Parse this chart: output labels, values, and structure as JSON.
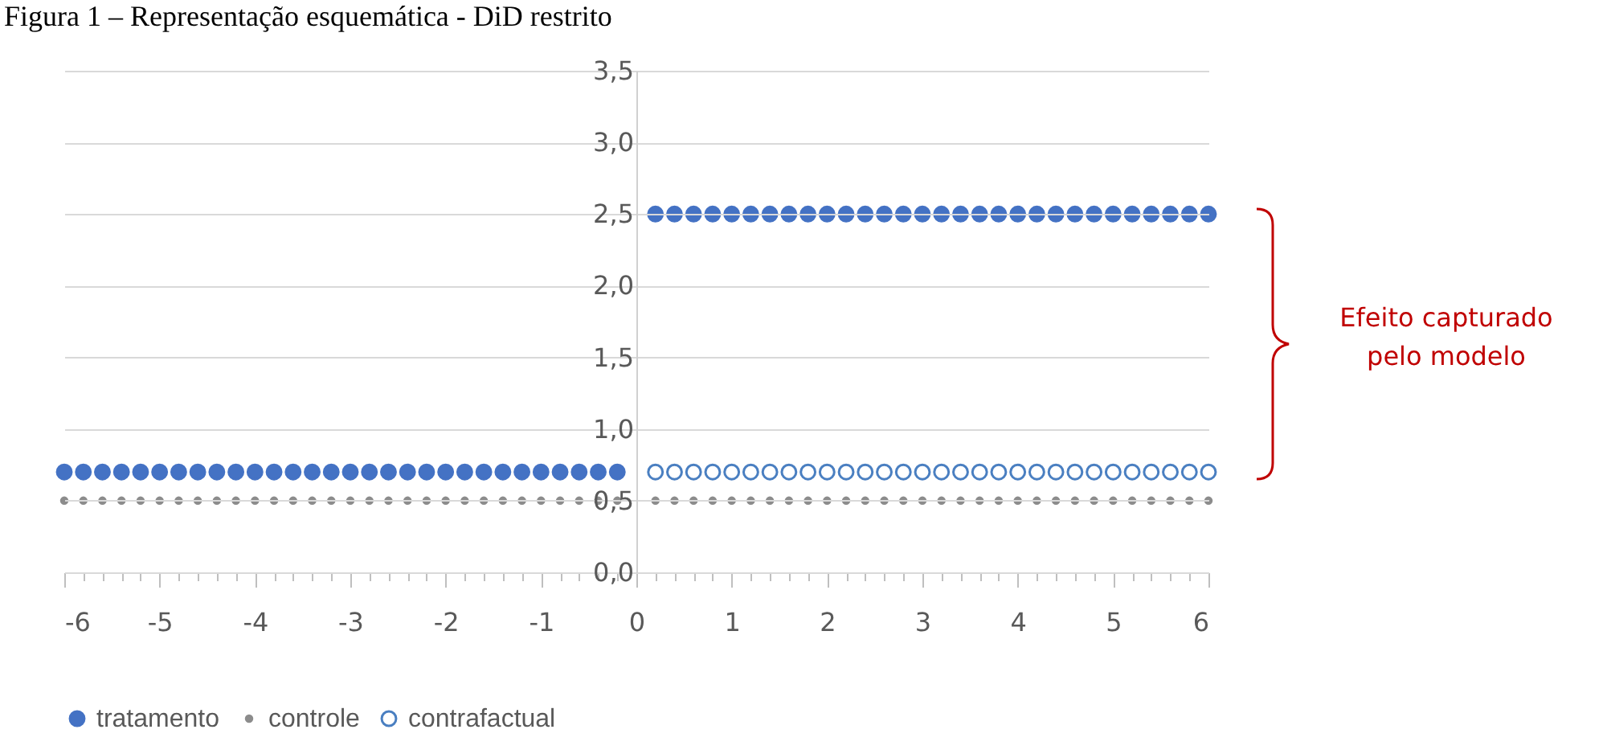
{
  "chart_data": {
    "type": "scatter",
    "title": "Figura 1 – Representação esquemática - DiD restrito",
    "annotations": [
      "Efeito capturado\npelo modelo"
    ],
    "xlim": [
      -6,
      6
    ],
    "ylim": [
      0,
      3.5
    ],
    "xticks": [
      -6,
      {
        "value": -5.8,
        "label": null
      },
      {
        "value": -5.6,
        "label": null
      },
      {
        "value": -5.4,
        "label": null
      },
      {
        "value": -5.2,
        "label": null
      },
      -5,
      {
        "value": -4.8,
        "label": null
      },
      {
        "value": -4.6,
        "label": null
      },
      {
        "value": -4.4,
        "label": null
      },
      {
        "value": -4.2,
        "label": null
      },
      -4,
      {
        "value": -3.8,
        "label": null
      },
      {
        "value": -3.6,
        "label": null
      },
      {
        "value": -3.4,
        "label": null
      },
      {
        "value": -3.2,
        "label": null
      },
      -3,
      {
        "value": -2.8,
        "label": null
      },
      {
        "value": -2.6,
        "label": null
      },
      {
        "value": -2.4,
        "label": null
      },
      {
        "value": -2.2,
        "label": null
      },
      -2,
      {
        "value": -1.8,
        "label": null
      },
      {
        "value": -1.6,
        "label": null
      },
      {
        "value": -1.4,
        "label": null
      },
      {
        "value": -1.2,
        "label": null
      },
      -1,
      {
        "value": -0.8,
        "label": null
      },
      {
        "value": -0.6,
        "label": null
      },
      {
        "value": -0.4,
        "label": null
      },
      {
        "value": -0.2,
        "label": null
      },
      0,
      {
        "value": 0.2,
        "label": null
      },
      {
        "value": 0.4,
        "label": null
      },
      {
        "value": 0.6,
        "label": null
      },
      {
        "value": 0.8,
        "label": null
      },
      1,
      {
        "value": 1.2,
        "label": null
      },
      {
        "value": 1.4,
        "label": null
      },
      {
        "value": 1.6,
        "label": null
      },
      {
        "value": 1.8,
        "label": null
      },
      2,
      {
        "value": 2.2,
        "label": null
      },
      {
        "value": 2.4,
        "label": null
      },
      {
        "value": 2.6,
        "label": null
      },
      {
        "value": 2.8,
        "label": null
      },
      3,
      {
        "value": 3.2,
        "label": null
      },
      {
        "value": 3.4,
        "label": null
      },
      {
        "value": 3.6,
        "label": null
      },
      {
        "value": 3.8,
        "label": null
      },
      4,
      {
        "value": 4.2,
        "label": null
      },
      {
        "value": 4.4,
        "label": null
      },
      {
        "value": 4.6,
        "label": null
      },
      {
        "value": 4.8,
        "label": null
      },
      5,
      {
        "value": 5.2,
        "label": null
      },
      {
        "value": 5.4,
        "label": null
      },
      {
        "value": 5.6,
        "label": null
      },
      {
        "value": 5.8,
        "label": null
      },
      6
    ],
    "yticks": [
      {
        "value": 0,
        "label": "0,0"
      },
      {
        "value": 0.5,
        "label": "0,5"
      },
      {
        "value": 1,
        "label": "1,0"
      },
      {
        "value": 1.5,
        "label": "1,5"
      },
      {
        "value": 2,
        "label": "2,0"
      },
      {
        "value": 2.5,
        "label": "2,5"
      },
      {
        "value": 3,
        "label": "3,0"
      },
      {
        "value": 3.5,
        "label": "3,5"
      }
    ],
    "grid": "y",
    "legend": "bottom",
    "marker": "circle",
    "series": [
      {
        "name": "tratamento",
        "color": "#4472c4",
        "x": [
          -6,
          -5.8,
          -5.6,
          -5.4,
          -5.2,
          -5,
          -4.8,
          -4.6,
          -4.4,
          -4.2,
          -4,
          -3.8,
          -3.6,
          -3.4,
          -3.2,
          -3,
          -2.8,
          -2.6,
          -2.4,
          -2.2,
          -2,
          -1.8,
          -1.6,
          -1.4,
          -1.2,
          -1,
          -0.8,
          -0.6,
          -0.4,
          -0.2,
          0.2,
          0.4,
          0.6,
          0.8,
          1,
          1.2,
          1.4,
          1.6,
          1.8,
          2,
          2.2,
          2.4,
          2.6,
          2.8,
          3,
          3.2,
          3.4,
          3.6,
          3.8,
          4,
          4.2,
          4.4,
          4.6,
          4.8,
          5,
          5.2,
          5.4,
          5.6,
          5.8,
          6
        ],
        "values": [
          0.7,
          0.7,
          0.7,
          0.7,
          0.7,
          0.7,
          0.7,
          0.7,
          0.7,
          0.7,
          0.7,
          0.7,
          0.7,
          0.7,
          0.7,
          0.7,
          0.7,
          0.7,
          0.7,
          0.7,
          0.7,
          0.7,
          0.7,
          0.7,
          0.7,
          0.7,
          0.7,
          0.7,
          0.7,
          0.7,
          2.5,
          2.5,
          2.5,
          2.5,
          2.5,
          2.5,
          2.5,
          2.5,
          2.5,
          2.5,
          2.5,
          2.5,
          2.5,
          2.5,
          2.5,
          2.5,
          2.5,
          2.5,
          2.5,
          2.5,
          2.5,
          2.5,
          2.5,
          2.5,
          2.5,
          2.5,
          2.5,
          2.5,
          2.5,
          2.5
        ]
      },
      {
        "name": "controle",
        "color": "#8c8c8c",
        "x": [
          -6,
          -5.8,
          -5.6,
          -5.4,
          -5.2,
          -5,
          -4.8,
          -4.6,
          -4.4,
          -4.2,
          -4,
          -3.8,
          -3.6,
          -3.4,
          -3.2,
          -3,
          -2.8,
          -2.6,
          -2.4,
          -2.2,
          -2,
          -1.8,
          -1.6,
          -1.4,
          -1.2,
          -1,
          -0.8,
          -0.6,
          -0.4,
          -0.2,
          0.2,
          0.4,
          0.6,
          0.8,
          1,
          1.2,
          1.4,
          1.6,
          1.8,
          2,
          2.2,
          2.4,
          2.6,
          2.8,
          3,
          3.2,
          3.4,
          3.6,
          3.8,
          4,
          4.2,
          4.4,
          4.6,
          4.8,
          5,
          5.2,
          5.4,
          5.6,
          5.8,
          6
        ],
        "values": [
          0.5,
          0.5,
          0.5,
          0.5,
          0.5,
          0.5,
          0.5,
          0.5,
          0.5,
          0.5,
          0.5,
          0.5,
          0.5,
          0.5,
          0.5,
          0.5,
          0.5,
          0.5,
          0.5,
          0.5,
          0.5,
          0.5,
          0.5,
          0.5,
          0.5,
          0.5,
          0.5,
          0.5,
          0.5,
          0.5,
          0.5,
          0.5,
          0.5,
          0.5,
          0.5,
          0.5,
          0.5,
          0.5,
          0.5,
          0.5,
          0.5,
          0.5,
          0.5,
          0.5,
          0.5,
          0.5,
          0.5,
          0.5,
          0.5,
          0.5,
          0.5,
          0.5,
          0.5,
          0.5,
          0.5,
          0.5,
          0.5,
          0.5,
          0.5,
          0.5
        ]
      },
      {
        "name": "contrafactual",
        "color": "#4a7fc1",
        "x": [
          0.2,
          0.4,
          0.6,
          0.8,
          1,
          1.2,
          1.4,
          1.6,
          1.8,
          2,
          2.2,
          2.4,
          2.6,
          2.8,
          3,
          3.2,
          3.4,
          3.6,
          3.8,
          4,
          4.2,
          4.4,
          4.6,
          4.8,
          5,
          5.2,
          5.4,
          5.6,
          5.8,
          6
        ],
        "values": [
          0.7,
          0.7,
          0.7,
          0.7,
          0.7,
          0.7,
          0.7,
          0.7,
          0.7,
          0.7,
          0.7,
          0.7,
          0.7,
          0.7,
          0.7,
          0.7,
          0.7,
          0.7,
          0.7,
          0.7,
          0.7,
          0.7,
          0.7,
          0.7,
          0.7,
          0.7,
          0.7,
          0.7,
          0.7,
          0.7
        ]
      }
    ]
  }
}
